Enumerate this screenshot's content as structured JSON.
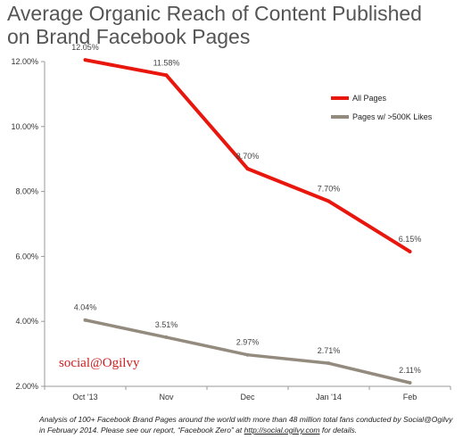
{
  "chart_data": {
    "type": "line",
    "title": "Average Organic Reach of Content Published on Brand Facebook Pages",
    "xlabel": "",
    "ylabel": "",
    "categories": [
      "Oct '13",
      "Nov",
      "Dec",
      "Jan '14",
      "Feb"
    ],
    "series": [
      {
        "name": "All Pages",
        "values": [
          12.05,
          11.58,
          8.7,
          7.7,
          6.15
        ],
        "labels": [
          "12.05%",
          "11.58%",
          "8.70%",
          "7.70%",
          "6.15%"
        ],
        "color": "#e8160c"
      },
      {
        "name": "Pages w/ >500K Likes",
        "values": [
          4.04,
          3.51,
          2.97,
          2.71,
          2.11
        ],
        "labels": [
          "4.04%",
          "3.51%",
          "2.97%",
          "2.71%",
          "2.11%"
        ],
        "color": "#948b7f"
      }
    ],
    "ylim": [
      2,
      12
    ],
    "yticks": [
      2,
      4,
      6,
      8,
      10,
      12
    ],
    "ytick_labels": [
      "2.00%",
      "4.00%",
      "6.00%",
      "8.00%",
      "10.00%",
      "12.00%"
    ],
    "grid": false,
    "legend_position": "top-right"
  },
  "watermark": "social@Ogilvy",
  "footnote": {
    "text": "Analysis of 100+ Facebook Brand Pages around the world with more than 48 million total fans conducted by Social@Ogilvy in February 2014. Please see our report, “Facebook Zero” at ",
    "link": "http://social.ogilvy.com",
    "suffix": " for details."
  }
}
